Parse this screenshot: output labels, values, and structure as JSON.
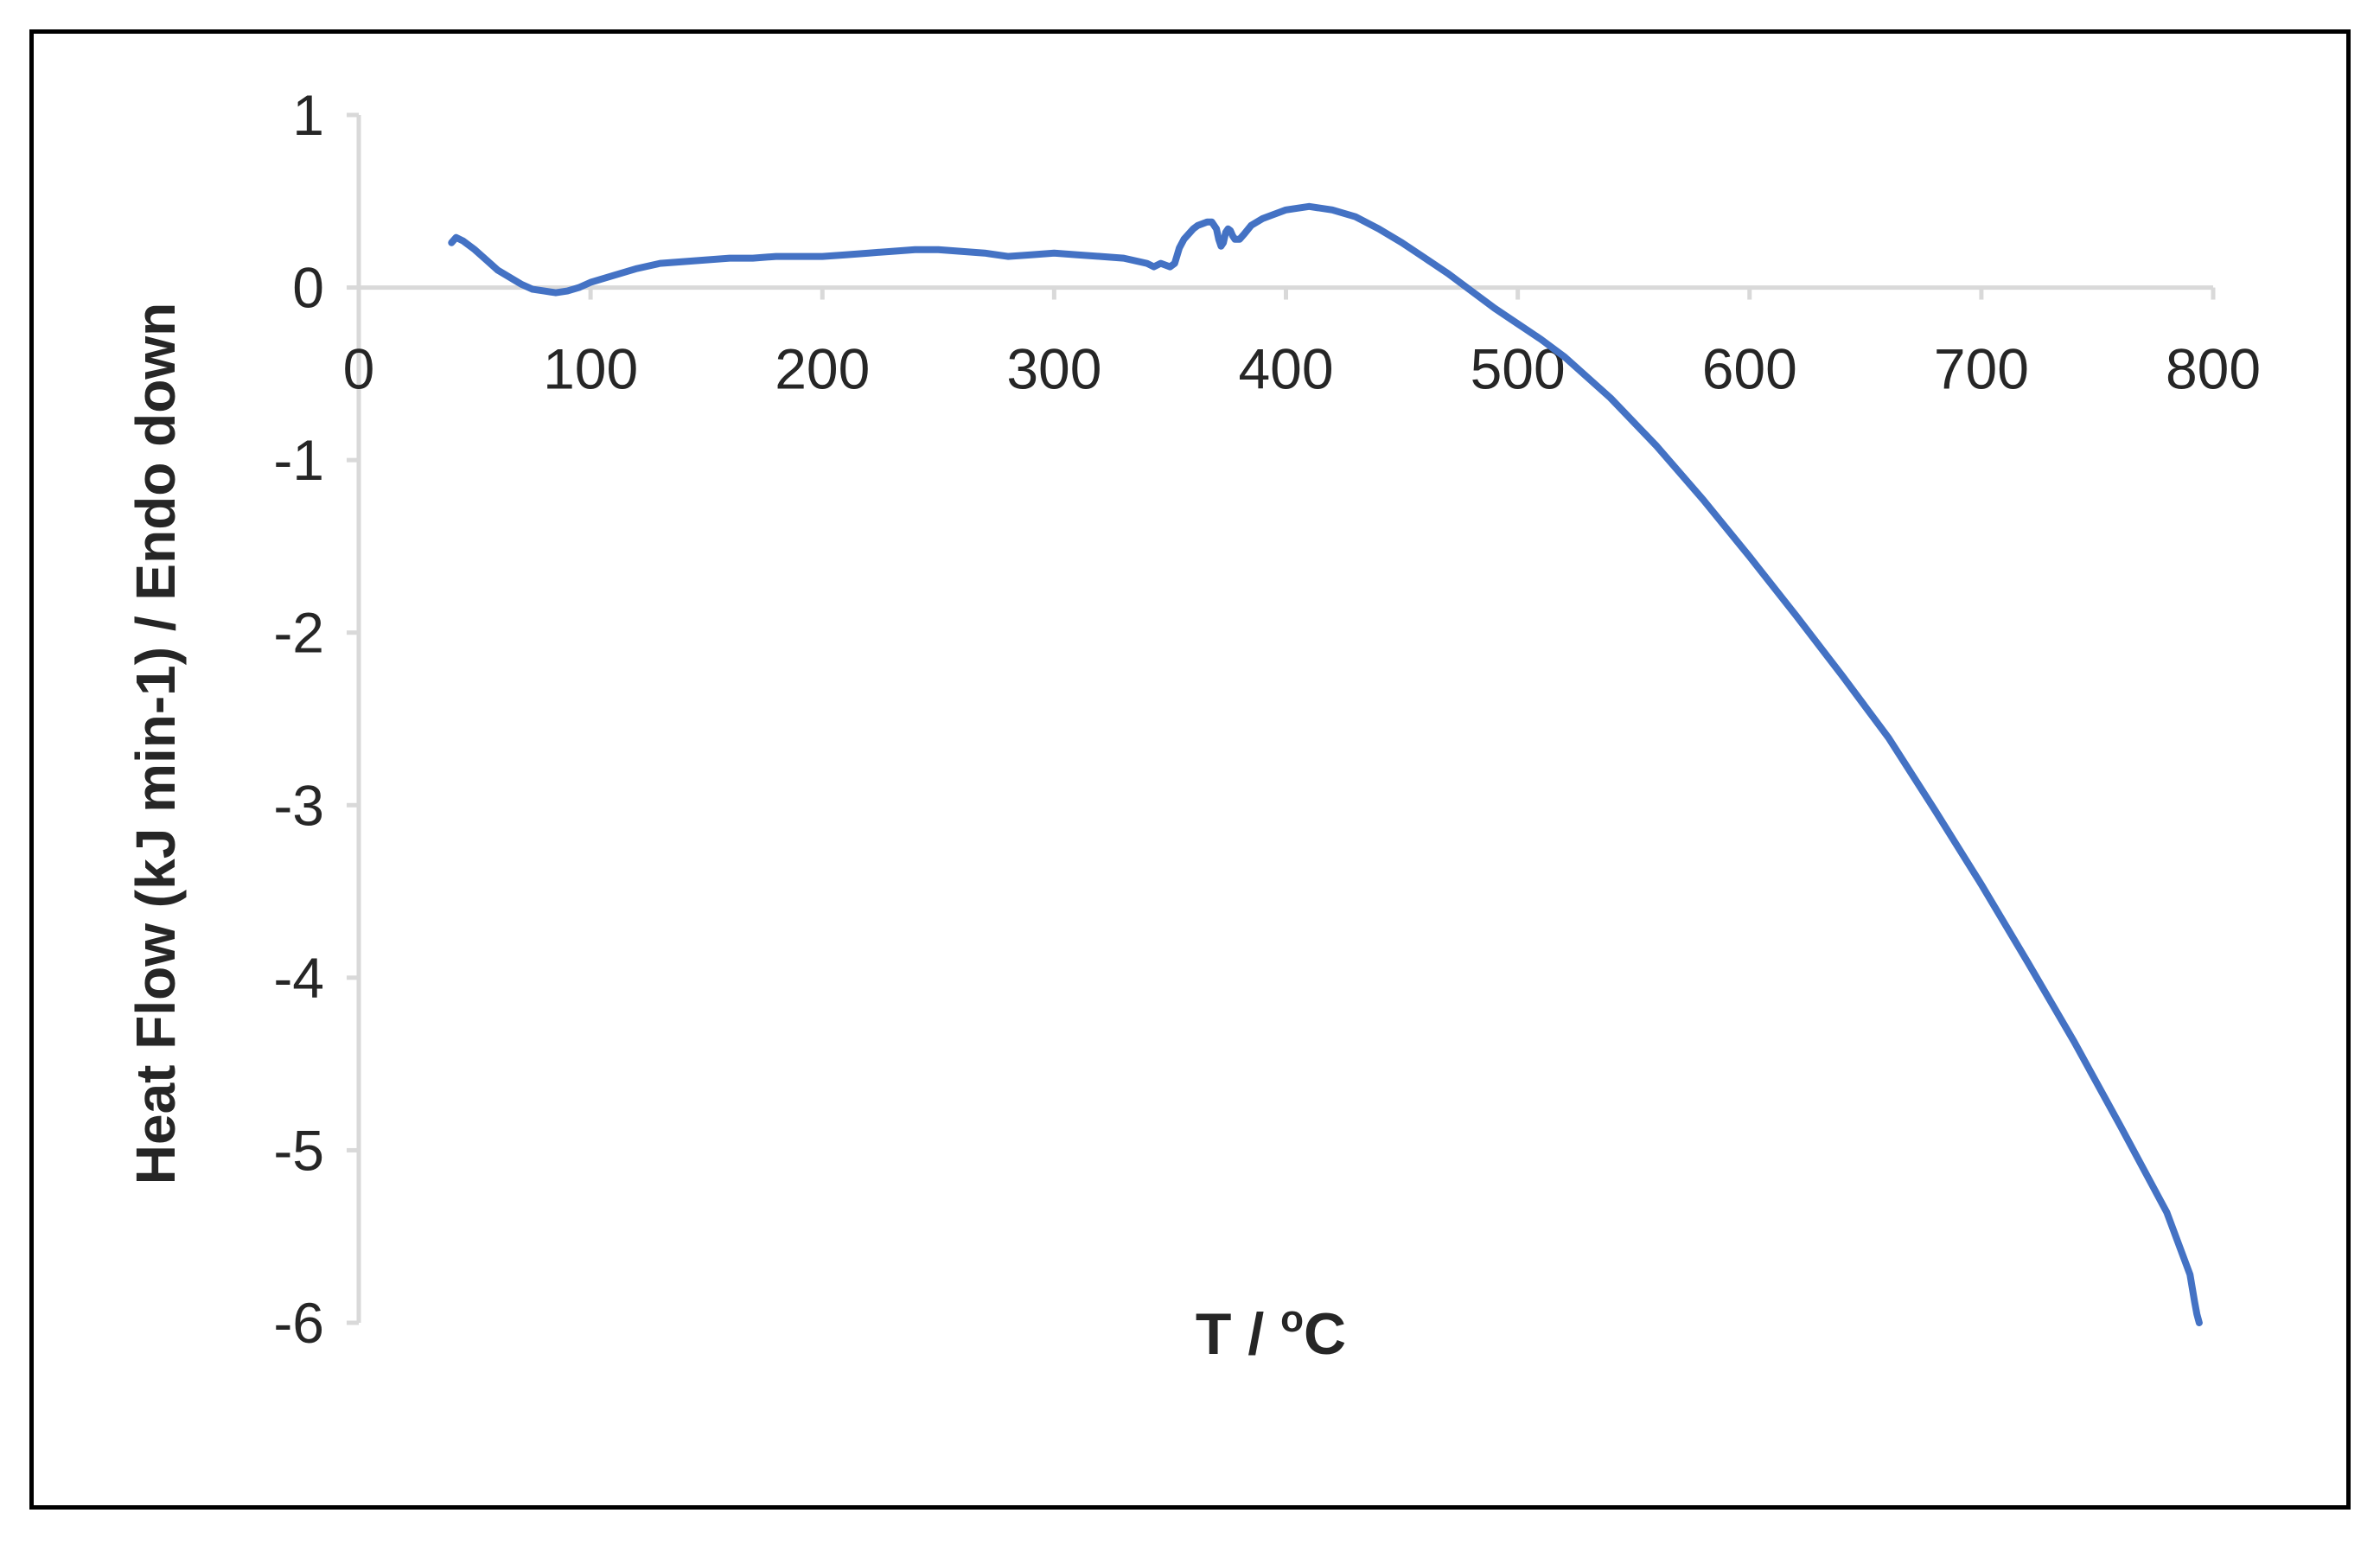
{
  "chart_data": {
    "type": "line",
    "title": "",
    "xlabel": {
      "main": "T / ",
      "sup": "o",
      "unit": "C"
    },
    "ylabel": "Heat Flow  (kJ min-1) / Endo down",
    "xlim": [
      0,
      800
    ],
    "ylim": [
      -6,
      1
    ],
    "x_ticks": [
      0,
      100,
      200,
      300,
      400,
      500,
      600,
      700,
      800
    ],
    "y_ticks": [
      1,
      0,
      -1,
      -2,
      -3,
      -4,
      -5,
      -6
    ],
    "grid": false,
    "legend": "none",
    "series": [
      {
        "color": "#4472C4",
        "x": [
          40,
          42,
          45,
          50,
          55,
          60,
          65,
          70,
          75,
          80,
          85,
          90,
          95,
          100,
          110,
          120,
          130,
          140,
          150,
          160,
          170,
          180,
          190,
          200,
          210,
          220,
          230,
          240,
          250,
          260,
          270,
          280,
          290,
          300,
          310,
          320,
          330,
          340,
          343,
          346,
          348,
          350,
          352,
          354,
          356,
          358,
          360,
          362,
          364,
          366,
          368,
          370,
          371,
          372,
          373,
          374,
          375,
          376,
          377,
          378,
          380,
          382,
          385,
          390,
          400,
          410,
          420,
          430,
          440,
          450,
          460,
          470,
          480,
          490,
          500,
          510,
          520,
          540,
          560,
          580,
          600,
          620,
          640,
          660,
          680,
          700,
          720,
          740,
          760,
          780,
          790,
          791,
          792,
          793,
          794
        ],
        "y": [
          0.26,
          0.29,
          0.27,
          0.22,
          0.16,
          0.1,
          0.06,
          0.02,
          -0.01,
          -0.02,
          -0.03,
          -0.02,
          0.0,
          0.03,
          0.07,
          0.11,
          0.14,
          0.15,
          0.16,
          0.17,
          0.17,
          0.18,
          0.18,
          0.18,
          0.19,
          0.2,
          0.21,
          0.22,
          0.22,
          0.21,
          0.2,
          0.18,
          0.19,
          0.2,
          0.19,
          0.18,
          0.17,
          0.14,
          0.12,
          0.14,
          0.13,
          0.12,
          0.14,
          0.23,
          0.28,
          0.31,
          0.34,
          0.36,
          0.37,
          0.38,
          0.38,
          0.34,
          0.28,
          0.24,
          0.26,
          0.32,
          0.34,
          0.33,
          0.3,
          0.28,
          0.28,
          0.31,
          0.36,
          0.4,
          0.45,
          0.47,
          0.45,
          0.41,
          0.34,
          0.26,
          0.17,
          0.08,
          -0.02,
          -0.12,
          -0.21,
          -0.3,
          -0.4,
          -0.64,
          -0.92,
          -1.23,
          -1.56,
          -1.9,
          -2.25,
          -2.61,
          -3.03,
          -3.46,
          -3.91,
          -4.37,
          -4.86,
          -5.36,
          -5.72,
          -5.8,
          -5.88,
          -5.95,
          -6.0
        ]
      }
    ]
  }
}
